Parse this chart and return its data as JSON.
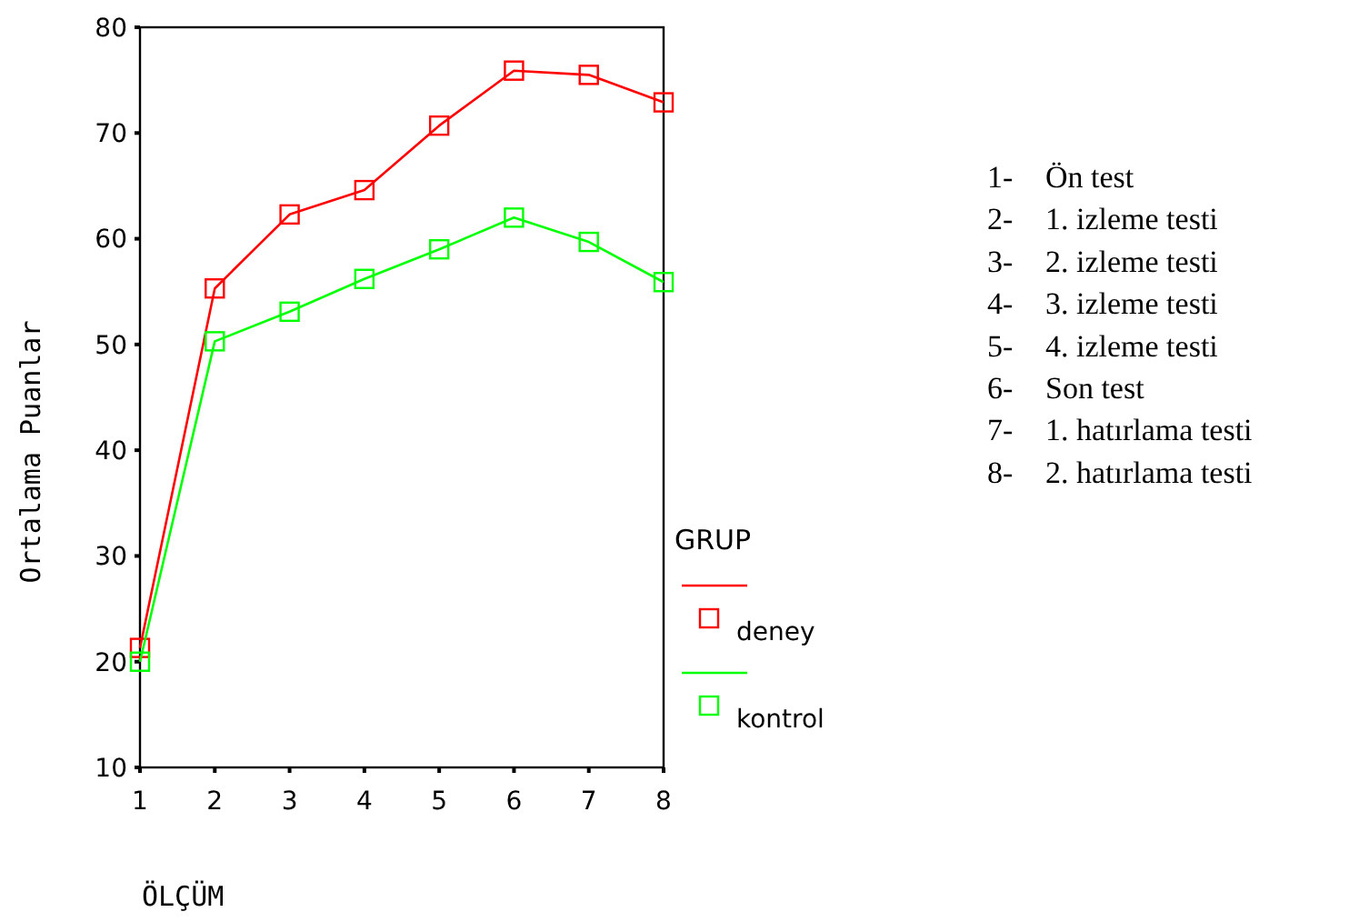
{
  "chart_data": {
    "type": "line",
    "xlabel": "ÖLÇÜM",
    "ylabel": "Ortalama Puanlar",
    "legend_title": "GRUP",
    "x": [
      1,
      2,
      3,
      4,
      5,
      6,
      7,
      8
    ],
    "series": [
      {
        "name": "deney",
        "color": "#ff0000",
        "values": [
          21.3,
          55.3,
          62.3,
          64.6,
          70.7,
          75.9,
          75.5,
          72.9
        ]
      },
      {
        "name": "kontrol",
        "color": "#00ff00",
        "values": [
          20.0,
          50.3,
          53.1,
          56.2,
          59.0,
          62.0,
          59.7,
          55.9
        ]
      }
    ],
    "xlim": [
      1,
      8
    ],
    "xticks": [
      1,
      2,
      3,
      4,
      5,
      6,
      7,
      8
    ],
    "ylim": [
      10,
      80
    ],
    "yticks": [
      10,
      20,
      30,
      40,
      50,
      60,
      70,
      80
    ],
    "marker": "square",
    "line_style": "solid",
    "grid": false,
    "legend": "right",
    "annotations": [
      "1- Ön test",
      "2- 1. izleme testi",
      "3- 2. izleme testi",
      "4- 3. izleme testi",
      "5- 4. izleme testi",
      "6- Son test",
      "7- 1. hatırlama testi",
      "8- 2. hatırlama testi"
    ]
  }
}
